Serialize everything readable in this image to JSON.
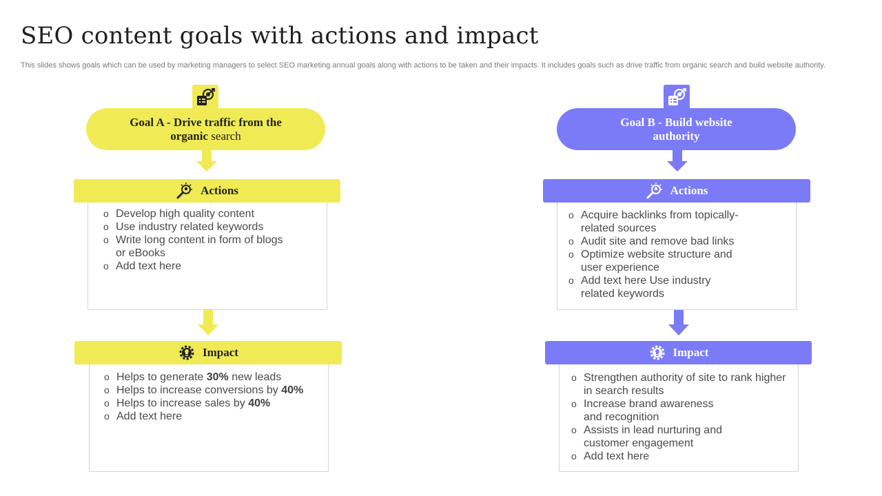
{
  "slide": {
    "title": "SEO content goals with actions and impact",
    "subtitle": "This slides shows goals which can be used by marketing managers to select SEO marketing annual goals along with actions to be taken and their impacts. It includes goals such as drive traffic from organic search and build website authority."
  },
  "colors": {
    "yellow": "#f0eb55",
    "purple": "#7b7bf7",
    "border": "#d4d4d4"
  },
  "goal_a": {
    "icon": "target-chart-icon",
    "title_bold": "Goal A - Drive traffic from the organic",
    "title_rest": " search",
    "actions_label": "Actions",
    "actions_icon": "idea-magnifier-icon",
    "actions": [
      [
        "Develop high quality content"
      ],
      [
        "Use industry related keywords"
      ],
      [
        "Write long content in form of blogs",
        "or eBooks"
      ],
      [
        "Add text here"
      ]
    ],
    "impact_label": "Impact",
    "impact_icon": "gear-bulb-icon",
    "impacts": [
      {
        "pre": "Helps to generate ",
        "bold": "30%",
        "post": " new leads"
      },
      {
        "pre": "Helps to increase conversions by ",
        "bold": "40%",
        "post": ""
      },
      {
        "pre": "Helps to increase sales by ",
        "bold": "40%",
        "post": ""
      },
      {
        "pre": "Add text here",
        "bold": "",
        "post": ""
      }
    ]
  },
  "goal_b": {
    "icon": "target-chart-icon",
    "title_line1": "Goal B - Build website",
    "title_line2": "authority",
    "actions_label": "Actions",
    "actions_icon": "idea-magnifier-icon",
    "actions": [
      [
        "Acquire backlinks from topically-",
        "related sources"
      ],
      [
        "Audit site and remove bad links"
      ],
      [
        "Optimize  website structure  and",
        "user experience"
      ],
      [
        "Add text here Use industry",
        "related keywords"
      ]
    ],
    "impact_label": "Impact",
    "impact_icon": "gear-bulb-icon",
    "impacts": [
      [
        "Strengthen authority  of site to rank higher",
        "in search results"
      ],
      [
        "Increase  brand awareness",
        "and recognition"
      ],
      [
        "Assists in lead nurturing  and",
        "customer engagement"
      ],
      [
        "Add text here"
      ]
    ]
  }
}
